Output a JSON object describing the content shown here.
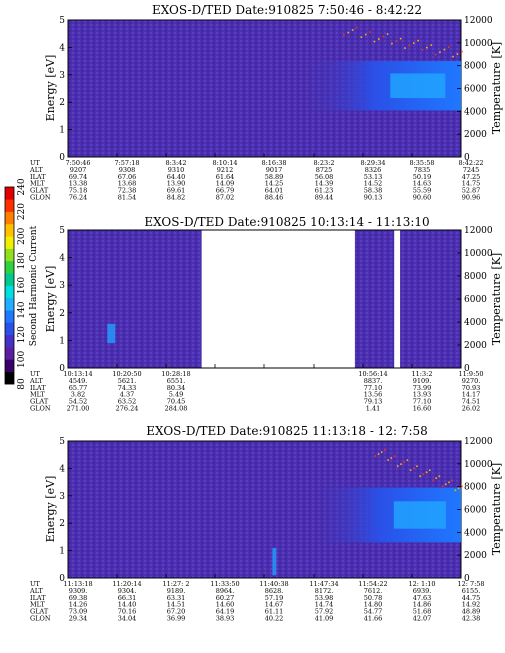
{
  "colors": {
    "spectrogram_background": "#4b2fb0",
    "spectrogram_texture": "#5a3ec4",
    "gap": "#ffffff",
    "cbar": [
      "#000000",
      "#3a006a",
      "#5a1ea0",
      "#4630c8",
      "#2a50e8",
      "#1f78ff",
      "#20b0ff",
      "#00dede",
      "#00c890",
      "#30d040",
      "#90e020",
      "#f0f000",
      "#ffc000",
      "#ff8000",
      "#ff3000",
      "#e00000"
    ]
  },
  "colorbar": {
    "label": "Second Harmonic Current",
    "ticks": [
      "80",
      "100",
      "120",
      "140",
      "160",
      "180",
      "200",
      "220",
      "240"
    ]
  },
  "chart_data": [
    {
      "type": "heatmap",
      "title": "EXOS-D/TED   Date:910825   7:50:46 - 8:42:22",
      "ylabel": "Energy [eV]",
      "y2label": "Temperature [K]",
      "ylim": [
        0,
        5
      ],
      "yticks": [
        "0",
        "1",
        "2",
        "3",
        "4",
        "5"
      ],
      "y2lim": [
        0,
        12000
      ],
      "y2ticks": [
        "0",
        "2000",
        "4000",
        "6000",
        "8000",
        "10000",
        "12000"
      ],
      "gaps": [],
      "features": [
        {
          "kind": "enhancement",
          "t": [
            0.6,
            1.0
          ],
          "energy": [
            1.7,
            3.5
          ],
          "level": "high"
        },
        {
          "kind": "temperature-points",
          "t": [
            0.7,
            1.0
          ],
          "temperature": [
            9000,
            11200
          ]
        }
      ],
      "rows": [
        {
          "label": "UT",
          "values": [
            "7:50:46",
            "7:57:18",
            "8:3:42",
            "8:10:14",
            "8:16:38",
            "8:23:2",
            "8:29:34",
            "8:35:58",
            "8:42:22"
          ]
        },
        {
          "label": "ALT",
          "values": [
            "9207",
            "9308",
            "9310",
            "9212",
            "9017",
            "8725",
            "8326",
            "7835",
            "7245"
          ]
        },
        {
          "label": "ILAT",
          "values": [
            "69.74",
            "67.06",
            "64.40",
            "61.64",
            "58.89",
            "56.08",
            "53.13",
            "50.19",
            "47.25"
          ]
        },
        {
          "label": "MLT",
          "values": [
            "13.38",
            "13.68",
            "13.90",
            "14.09",
            "14.25",
            "14.39",
            "14.52",
            "14.63",
            "14.75"
          ]
        },
        {
          "label": "GLAT",
          "values": [
            "75.18",
            "72.38",
            "69.61",
            "66.79",
            "64.01",
            "61.23",
            "58.38",
            "55.59",
            "52.87"
          ]
        },
        {
          "label": "GLON",
          "values": [
            "76.24",
            "81.54",
            "84.82",
            "87.02",
            "88.46",
            "89.44",
            "90.13",
            "90.60",
            "90.96"
          ]
        }
      ]
    },
    {
      "type": "heatmap",
      "title": "EXOS-D/TED   Date:910825   10:13:14 - 11:13:10",
      "ylabel": "Energy [eV]",
      "y2label": "Temperature [K]",
      "ylim": [
        0,
        5
      ],
      "yticks": [
        "0",
        "1",
        "2",
        "3",
        "4",
        "5"
      ],
      "y2lim": [
        0,
        12000
      ],
      "y2ticks": [
        "0",
        "2000",
        "4000",
        "6000",
        "8000",
        "10000",
        "12000"
      ],
      "gaps": [
        [
          0.34,
          0.73
        ],
        [
          0.83,
          0.845
        ]
      ],
      "features": [
        {
          "kind": "streak",
          "t": [
            0.1,
            0.12
          ],
          "energy": [
            0.9,
            1.6
          ],
          "level": "medium"
        }
      ],
      "rows": [
        {
          "label": "UT",
          "values": [
            "10:13:14",
            "10:20:50",
            "10:28:18",
            "",
            "",
            "",
            "10:56:14",
            "11:3:2",
            "11:9:50"
          ]
        },
        {
          "label": "ALT",
          "values": [
            "4549.",
            "5621.",
            "6551.",
            "",
            "",
            "",
            "8837.",
            "9109.",
            "9270."
          ]
        },
        {
          "label": "ILAT",
          "values": [
            "65.77",
            "74.33",
            "80.34",
            "",
            "",
            "",
            "77.10",
            "73.99",
            "70.93"
          ]
        },
        {
          "label": "MLT",
          "values": [
            "3.82",
            "4.37",
            "5.49",
            "",
            "",
            "",
            "13.56",
            "13.93",
            "14.17"
          ]
        },
        {
          "label": "GLAT",
          "values": [
            "54.52",
            "63.52",
            "70.45",
            "",
            "",
            "",
            "79.13",
            "77.10",
            "74.51"
          ]
        },
        {
          "label": "GLON",
          "values": [
            "271.00",
            "276.24",
            "284.08",
            "",
            "",
            "",
            "1.41",
            "16.60",
            "26.02"
          ]
        }
      ]
    },
    {
      "type": "heatmap",
      "title": "EXOS-D/TED   Date:910825   11:13:18 - 12: 7:58",
      "ylabel": "Energy [eV]",
      "y2label": "Temperature [K]",
      "ylim": [
        0,
        5
      ],
      "yticks": [
        "0",
        "1",
        "2",
        "3",
        "4",
        "5"
      ],
      "y2lim": [
        0,
        12000
      ],
      "y2ticks": [
        "0",
        "2000",
        "4000",
        "6000",
        "8000",
        "10000",
        "12000"
      ],
      "gaps": [],
      "features": [
        {
          "kind": "enhancement",
          "t": [
            0.62,
            1.0
          ],
          "energy": [
            1.3,
            3.3
          ],
          "level": "high"
        },
        {
          "kind": "temperature-points",
          "t": [
            0.78,
            1.0
          ],
          "temperature": [
            7800,
            11200
          ]
        },
        {
          "kind": "streak",
          "t": [
            0.52,
            0.53
          ],
          "energy": [
            0.1,
            1.1
          ],
          "level": "medium"
        }
      ],
      "rows": [
        {
          "label": "UT",
          "values": [
            "11:13:18",
            "11:20:14",
            "11:27: 2",
            "11:33:50",
            "11:40:38",
            "11:47:34",
            "11:54:22",
            "12: 1:10",
            "12: 7:58"
          ]
        },
        {
          "label": "ALT",
          "values": [
            "9309.",
            "9304.",
            "9189.",
            "8964.",
            "8628.",
            "8172.",
            "7612.",
            "6939.",
            "6155."
          ]
        },
        {
          "label": "ILAT",
          "values": [
            "69.38",
            "66.31",
            "63.31",
            "60.27",
            "57.19",
            "53.98",
            "50.78",
            "47.63",
            "44.75"
          ]
        },
        {
          "label": "MLT",
          "values": [
            "14.26",
            "14.40",
            "14.51",
            "14.60",
            "14.67",
            "14.74",
            "14.80",
            "14.86",
            "14.92"
          ]
        },
        {
          "label": "GLAT",
          "values": [
            "73.09",
            "70.16",
            "67.20",
            "64.19",
            "61.11",
            "57.92",
            "54.77",
            "51.68",
            "48.89"
          ]
        },
        {
          "label": "GLON",
          "values": [
            "29.34",
            "34.04",
            "36.99",
            "38.93",
            "40.22",
            "41.09",
            "41.66",
            "42.07",
            "42.38"
          ]
        }
      ]
    }
  ]
}
